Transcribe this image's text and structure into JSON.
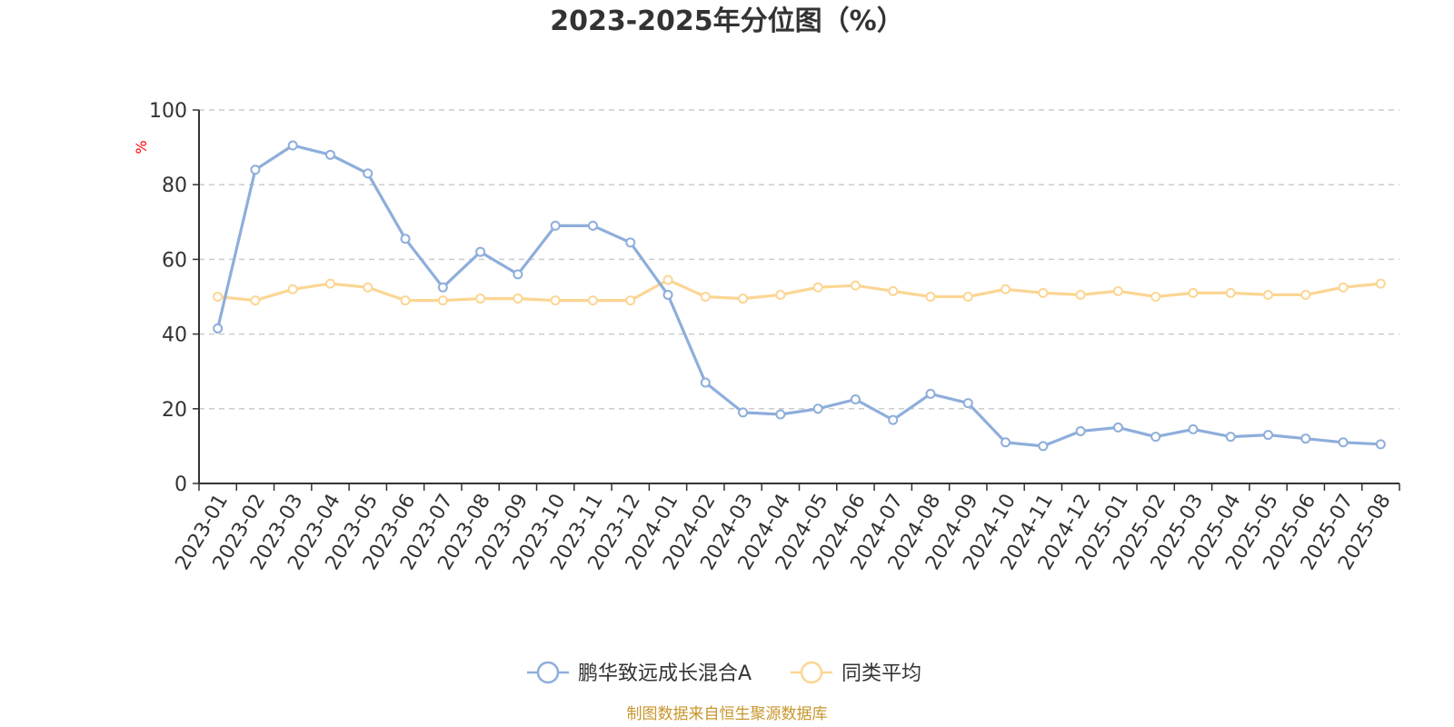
{
  "chart_data": {
    "type": "line",
    "title": "2023-2025年分位图（%）",
    "ylabel": "%",
    "ylim": [
      0,
      100
    ],
    "yticks": [
      0,
      20,
      40,
      60,
      80,
      100
    ],
    "grid": true,
    "legend_position": "bottom",
    "categories": [
      "2023-01",
      "2023-02",
      "2023-03",
      "2023-04",
      "2023-05",
      "2023-06",
      "2023-07",
      "2023-08",
      "2023-09",
      "2023-10",
      "2023-11",
      "2023-12",
      "2024-01",
      "2024-02",
      "2024-03",
      "2024-04",
      "2024-05",
      "2024-06",
      "2024-07",
      "2024-08",
      "2024-09",
      "2024-10",
      "2024-11",
      "2024-12",
      "2025-01",
      "2025-02",
      "2025-03",
      "2025-04",
      "2025-05",
      "2025-06",
      "2025-07",
      "2025-08"
    ],
    "series": [
      {
        "name": "鹏华致远成长混合A",
        "color": "#8eaedb",
        "values": [
          41.5,
          84,
          90.5,
          88,
          83,
          65.5,
          52.5,
          62,
          56,
          69,
          69,
          64.5,
          50.5,
          27,
          19,
          18.5,
          20,
          22.5,
          17,
          24,
          21.5,
          11,
          10,
          14,
          15,
          12.5,
          14.5,
          12.5,
          13,
          12,
          11,
          10.5
        ]
      },
      {
        "name": "同类平均",
        "color": "#fcd694",
        "values": [
          50,
          49,
          52,
          53.5,
          52.5,
          49,
          49,
          49.5,
          49.5,
          49,
          49,
          49,
          54.5,
          50,
          49.5,
          50.5,
          52.5,
          53,
          51.5,
          50,
          50,
          52,
          51,
          50.5,
          51.5,
          50,
          51,
          51,
          50.5,
          50.5,
          52.5,
          53.5
        ]
      }
    ],
    "source": "制图数据来自恒生聚源数据库",
    "unit_color": "#ff0000",
    "source_color": "#c8962c",
    "axis_color": "#333333",
    "grid_color": "#cccccc"
  }
}
